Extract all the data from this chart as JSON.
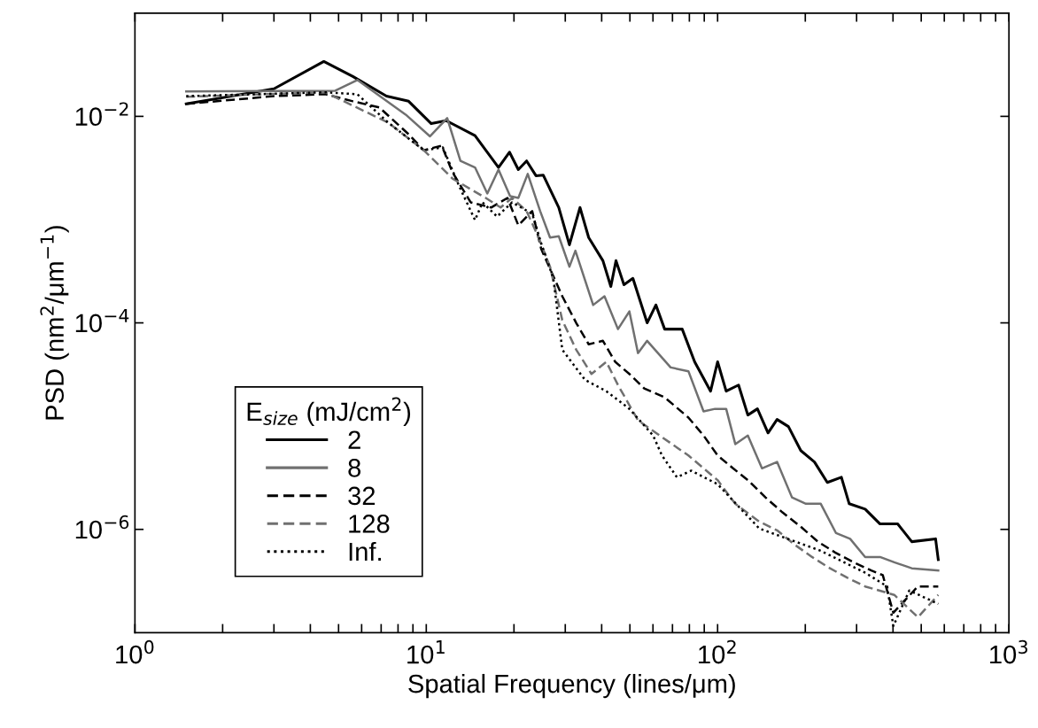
{
  "chart_data": {
    "type": "line",
    "xlabel": "Spatial Frequency (lines/μm)",
    "ylabel": "PSD (nm$^{2}$/μm$^{−1}$)",
    "legend_title": "E$_{size}$ (mJ/cm$^{2}$)",
    "log": "xy",
    "xlim": [
      1,
      1000
    ],
    "ylim": [
      1e-07,
      0.1
    ],
    "xticks": [
      {
        "value": 1,
        "label": "10$^{0}$"
      },
      {
        "value": 2,
        "label": null
      },
      {
        "value": 3,
        "label": null
      },
      {
        "value": 4,
        "label": null
      },
      {
        "value": 5,
        "label": null
      },
      {
        "value": 6,
        "label": null
      },
      {
        "value": 7,
        "label": null
      },
      {
        "value": 8,
        "label": null
      },
      {
        "value": 9,
        "label": null
      },
      {
        "value": 10,
        "label": "10$^{1}$"
      },
      {
        "value": 20,
        "label": null
      },
      {
        "value": 30,
        "label": null
      },
      {
        "value": 40,
        "label": null
      },
      {
        "value": 50,
        "label": null
      },
      {
        "value": 60,
        "label": null
      },
      {
        "value": 70,
        "label": null
      },
      {
        "value": 80,
        "label": null
      },
      {
        "value": 90,
        "label": null
      },
      {
        "value": 100,
        "label": "10$^{2}$"
      },
      {
        "value": 200,
        "label": null
      },
      {
        "value": 300,
        "label": null
      },
      {
        "value": 400,
        "label": null
      },
      {
        "value": 500,
        "label": null
      },
      {
        "value": 600,
        "label": null
      },
      {
        "value": 700,
        "label": null
      },
      {
        "value": 800,
        "label": null
      },
      {
        "value": 900,
        "label": null
      },
      {
        "value": 1000,
        "label": "10$^{3}$"
      }
    ],
    "yticks": [
      {
        "value": 0.01,
        "label": "10$^{−2}$"
      },
      {
        "value": 0.0001,
        "label": "10$^{−4}$"
      },
      {
        "value": 1e-06,
        "label": "10$^{−6}$"
      }
    ],
    "grid": false,
    "legend": "bottom left",
    "marker": "none",
    "series": [
      {
        "name": "2",
        "color": "#000000",
        "line_style": "solid",
        "x": [
          1.5,
          3.0,
          4.45,
          5.6,
          7.3,
          8.7,
          10.4,
          11.7,
          14.7,
          17.7,
          19.3,
          20.7,
          22.1,
          23.8,
          25.2,
          28.5,
          31.0,
          33.7,
          36.1,
          40.4,
          43.0,
          44.8,
          47.7,
          51.2,
          57.3,
          61.4,
          65.8,
          75.6,
          83.4,
          94.6,
          100,
          107,
          118,
          127,
          137,
          149,
          160,
          175,
          193,
          215,
          238,
          266,
          283,
          321,
          361,
          415,
          464,
          560,
          572
        ],
        "values": [
          0.0132,
          0.0185,
          0.034,
          0.0243,
          0.0157,
          0.014,
          0.0085,
          0.0091,
          0.0065,
          0.0032,
          0.0045,
          0.00305,
          0.0037,
          0.00266,
          0.0027,
          0.00131,
          0.00057,
          0.00131,
          0.00067,
          0.0004,
          0.000225,
          0.0004,
          0.000234,
          0.00027,
          0.0001,
          0.000149,
          8.7e-05,
          8.7e-05,
          4.2e-05,
          2.18e-05,
          4.2e-05,
          2.18e-05,
          2.5e-05,
          1.28e-05,
          1.47e-05,
          8.6e-06,
          1.16e-05,
          9.9e-06,
          5.8e-06,
          4.5e-06,
          2.85e-06,
          3.2e-06,
          1.77e-06,
          1.57e-06,
          1.13e-06,
          1.13e-06,
          7.6e-07,
          8.1e-07,
          5.1e-07
        ]
      },
      {
        "name": "8",
        "color": "#707070",
        "line_style": "solid",
        "x": [
          1.5,
          4.87,
          5.8,
          8.5,
          10.3,
          11.8,
          13.1,
          14.7,
          16.2,
          17.7,
          19.4,
          20.7,
          22.3,
          24.6,
          26.6,
          28.5,
          31.0,
          32.5,
          37.4,
          40.9,
          45.5,
          49.8,
          53.3,
          57.3,
          69.0,
          79.4,
          89.5,
          98,
          107,
          115,
          127,
          142,
          160,
          180,
          201,
          226,
          255,
          285,
          321,
          361,
          404,
          464,
          572
        ],
        "values": [
          0.0174,
          0.0177,
          0.0225,
          0.0104,
          0.0064,
          0.0096,
          0.0037,
          0.0032,
          0.00179,
          0.00305,
          0.00169,
          0.00162,
          0.00277,
          0.00121,
          0.00067,
          0.00069,
          0.00035,
          0.0005,
          0.000149,
          0.000181,
          8.7e-05,
          0.000129,
          5.1e-05,
          6.7e-05,
          3.7e-05,
          3.4e-05,
          1.39e-05,
          1.47e-05,
          1.47e-05,
          6.7e-06,
          8.1e-06,
          3.9e-06,
          4.5e-06,
          2.04e-06,
          1.77e-06,
          1.77e-06,
          9.2e-07,
          8.1e-07,
          5.4e-07,
          5.4e-07,
          4.8e-07,
          4.2e-07,
          4e-07
        ]
      },
      {
        "name": "32",
        "color": "#000000",
        "line_style": "dashed",
        "x": [
          1.5,
          3.0,
          4.5,
          5.6,
          6.9,
          8.7,
          9.8,
          11.3,
          12.3,
          14.2,
          16.7,
          19.0,
          20.7,
          23.1,
          24.8,
          29.3,
          32.7,
          36.1,
          40.4,
          44.5,
          49.8,
          56.0,
          65.8,
          79.4,
          89.5,
          100,
          113,
          127,
          146,
          167,
          193,
          221,
          255,
          293,
          337,
          369,
          401,
          487,
          572
        ],
        "values": [
          0.0132,
          0.0157,
          0.0164,
          0.014,
          0.0122,
          0.0067,
          0.0047,
          0.0052,
          0.00288,
          0.00147,
          0.00131,
          0.00162,
          0.00088,
          0.00121,
          0.00052,
          0.000181,
          0.0001,
          6.2e-05,
          6.7e-05,
          4.2e-05,
          3.2e-05,
          2.32e-05,
          1.9e-05,
          1.21e-05,
          8.1e-06,
          5.2e-06,
          3.9e-06,
          3e-06,
          2.04e-06,
          1.46e-06,
          1.06e-06,
          7.6e-07,
          5.9e-07,
          4.8e-07,
          4e-07,
          3.6e-07,
          1.56e-07,
          2.8e-07,
          2.8e-07
        ]
      },
      {
        "name": "128",
        "color": "#707070",
        "line_style": "dashed",
        "x": [
          1.5,
          4.5,
          7.4,
          9.8,
          12.3,
          16.0,
          18.0,
          19.7,
          22.1,
          24.3,
          26.6,
          29.3,
          32.7,
          36.9,
          41.5,
          45.5,
          53.3,
          61.4,
          79.4,
          89.5,
          100,
          115,
          139,
          160,
          184,
          211,
          243,
          279,
          321,
          404,
          487,
          572
        ],
        "values": [
          0.0155,
          0.0171,
          0.0087,
          0.0047,
          0.0025,
          0.00162,
          0.00131,
          0.00162,
          0.00121,
          0.00067,
          0.00035,
          0.000106,
          5.5e-05,
          3.2e-05,
          4.2e-05,
          2.5e-05,
          1.14e-05,
          8.6e-06,
          5.2e-06,
          3.9e-06,
          3e-06,
          1.77e-06,
          1.19e-06,
          9.8e-07,
          7.1e-07,
          5.4e-07,
          4.2e-07,
          3.4e-07,
          2.8e-07,
          2.32e-07,
          1.41e-07,
          2.32e-07
        ]
      },
      {
        "name": "Inf.",
        "color": "#000000",
        "line_style": "dotted",
        "x": [
          1.5,
          4.5,
          5.8,
          7.4,
          9.8,
          11.4,
          12.9,
          14.7,
          15.6,
          17.5,
          19.7,
          23.1,
          24.8,
          27.3,
          29.3,
          35.1,
          41.5,
          49.8,
          60.1,
          64.4,
          72.5,
          81.2,
          100,
          139,
          226,
          321,
          382,
          401,
          455,
          572
        ],
        "values": [
          0.0157,
          0.0171,
          0.0164,
          0.0087,
          0.0047,
          0.005,
          0.00218,
          0.00099,
          0.00147,
          0.00107,
          0.00147,
          0.00114,
          0.00059,
          0.00027,
          5.5e-05,
          2.8e-05,
          2.18e-05,
          1.47e-05,
          8.1e-06,
          5.2e-06,
          3.2e-06,
          3.7e-06,
          2.74e-06,
          1.02e-06,
          6.2e-07,
          3.8e-07,
          2.8e-07,
          1.16e-07,
          2.56e-07,
          1.9e-07
        ]
      }
    ]
  }
}
